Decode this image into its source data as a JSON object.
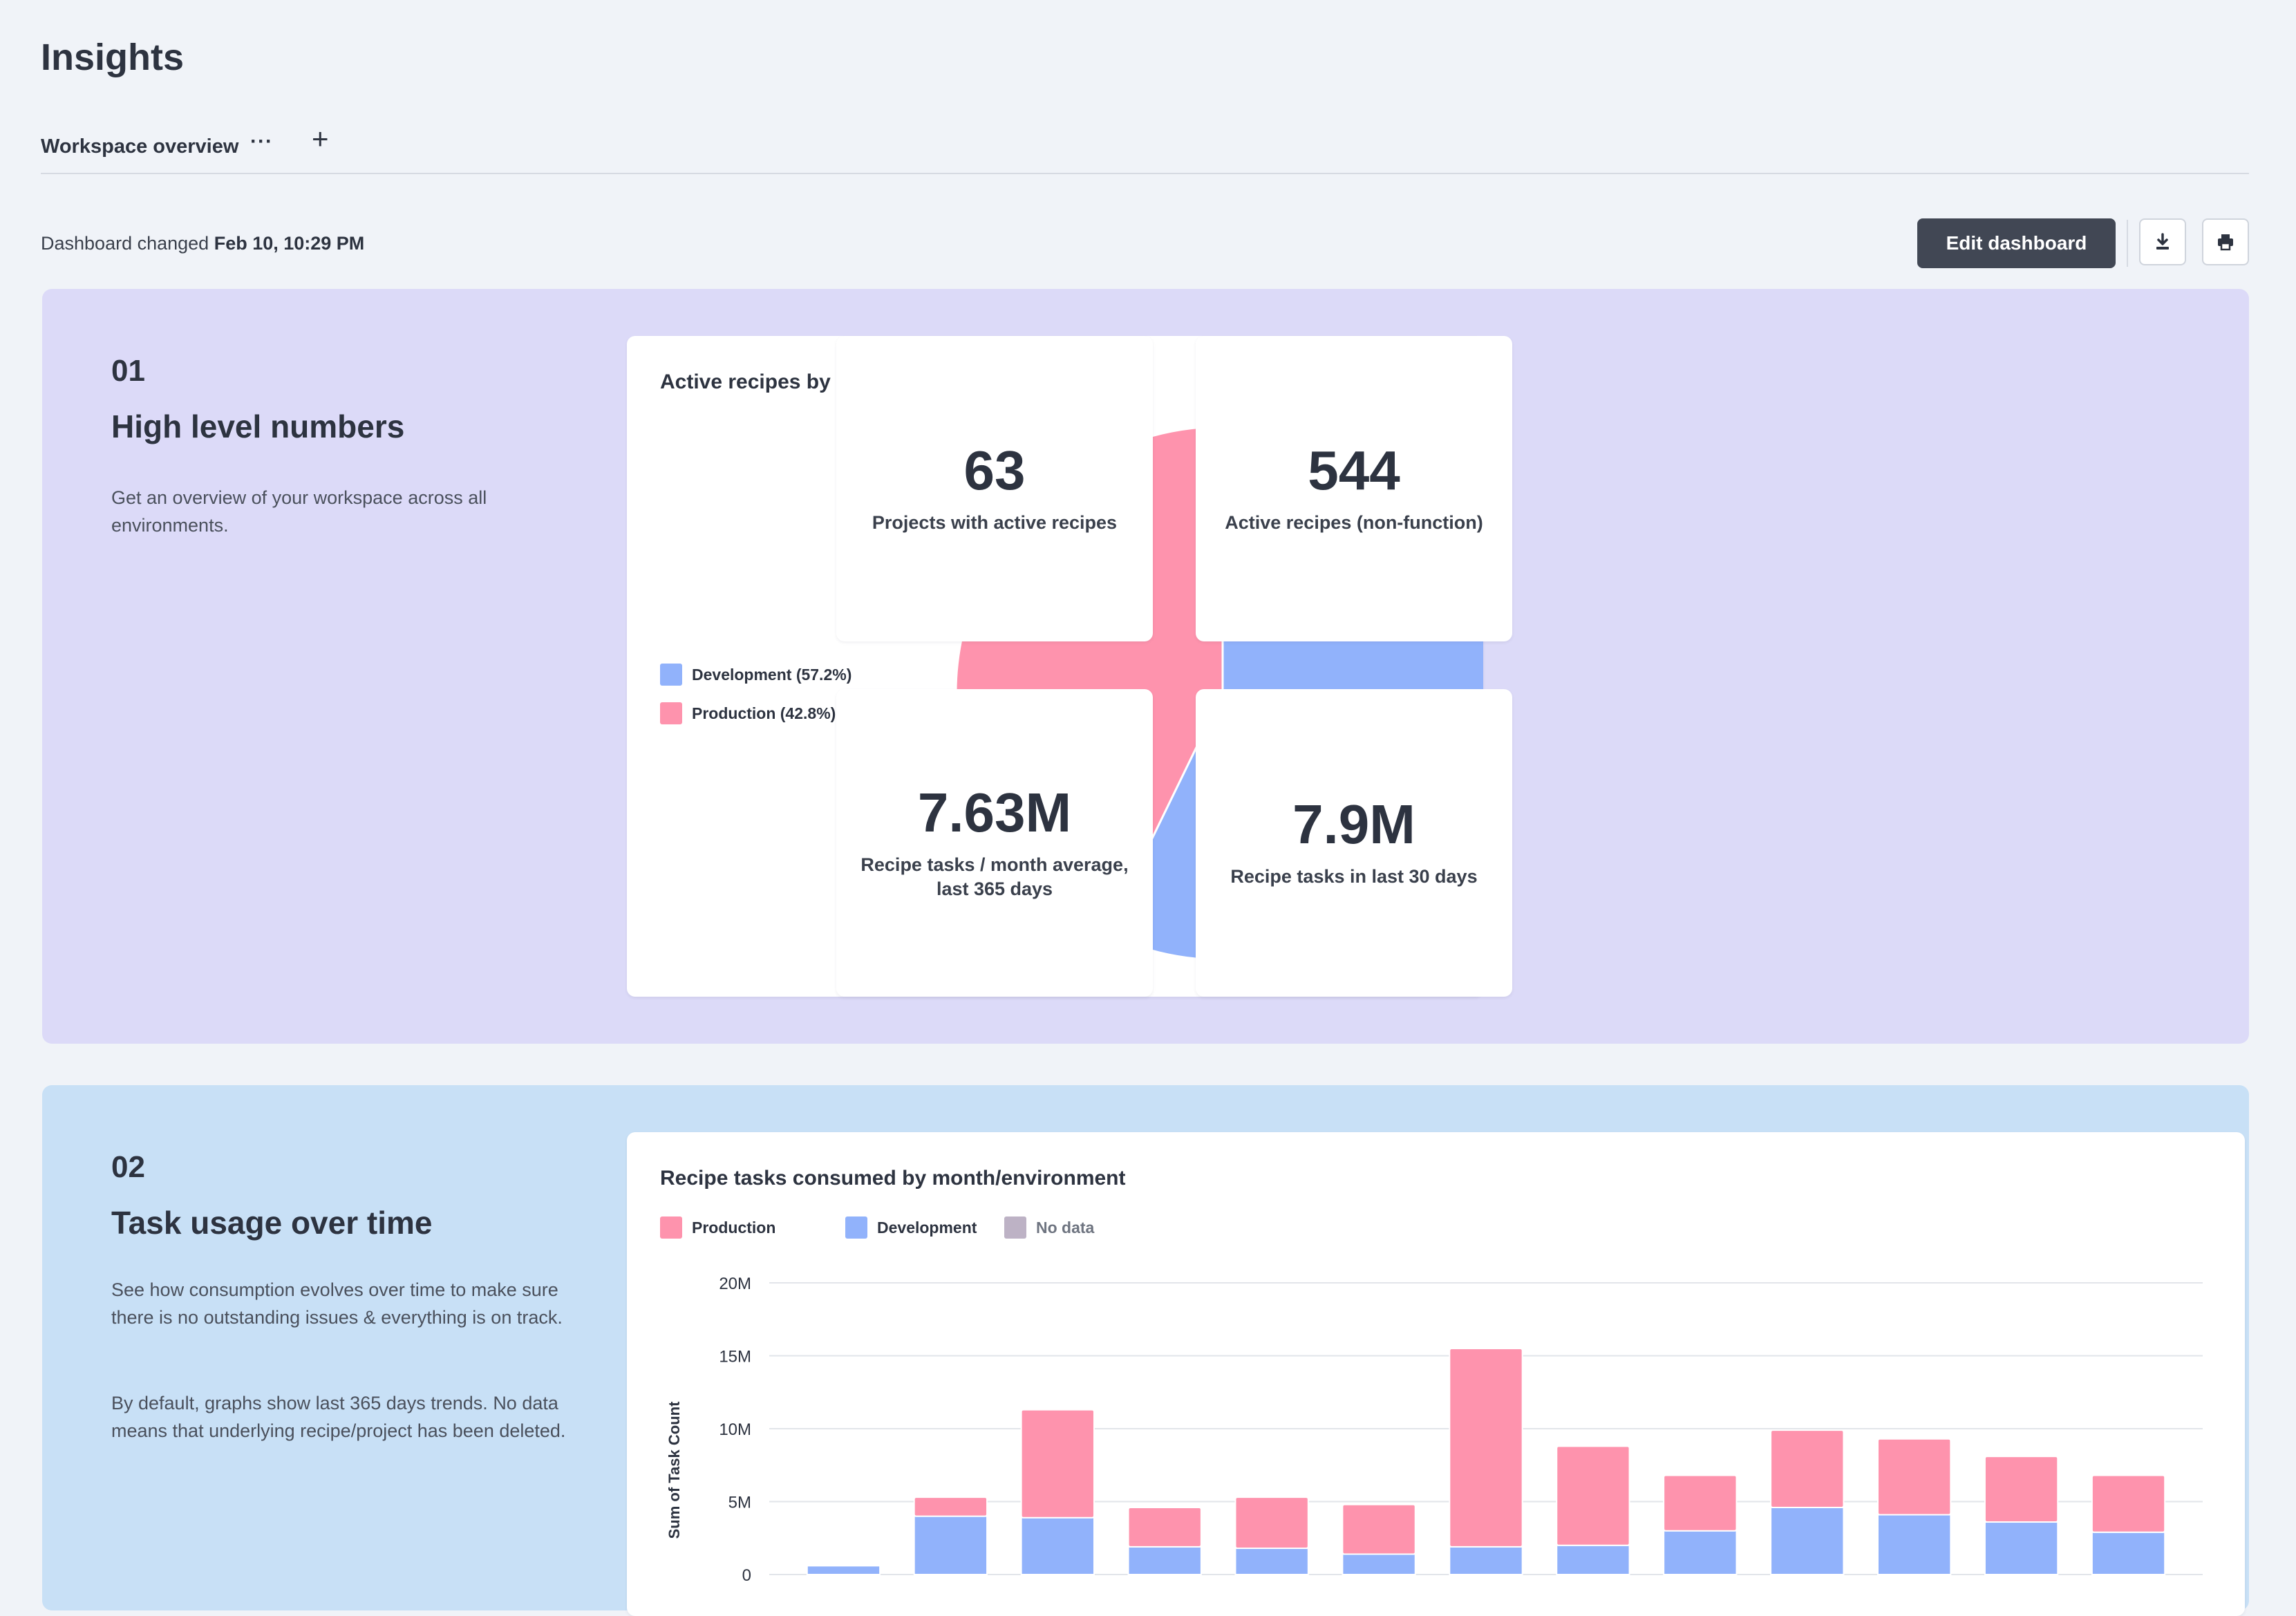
{
  "page": {
    "title": "Insights"
  },
  "tabs": {
    "active_label": "Workspace overview",
    "more_label": "···",
    "add_label": "+"
  },
  "toolbar": {
    "changed_prefix": "Dashboard changed",
    "changed_time": "Feb 10, 10:29 PM",
    "edit_label": "Edit dashboard",
    "download_icon": "download-icon",
    "print_icon": "print-icon"
  },
  "colors": {
    "development": "#91b2fb",
    "production": "#fe93ad",
    "no_data": "#bdb2c5"
  },
  "section1": {
    "number": "01",
    "title": "High level numbers",
    "description": "Get an overview of your workspace across all environments."
  },
  "pie_card": {
    "title": "Active recipes by environment"
  },
  "stats": [
    {
      "value": "63",
      "label": "Projects with active recipes"
    },
    {
      "value": "544",
      "label": "Active recipes (non-function)"
    },
    {
      "value": "7.63M",
      "label": "Recipe tasks / month average, last 365 days"
    },
    {
      "value": "7.9M",
      "label": "Recipe tasks in last 30 days"
    }
  ],
  "section2": {
    "number": "02",
    "title": "Task usage over time",
    "description_1": "See how consumption evolves over time to make sure there is no outstanding issues & everything is on track.",
    "description_2": "By default, graphs show last 365 days trends. No data means that underlying recipe/project has been deleted."
  },
  "bar_card": {
    "title": "Recipe tasks consumed by month/environment"
  },
  "chart_data": [
    {
      "type": "pie",
      "title": "Active recipes by environment",
      "slices": [
        {
          "label": "Development (57.2%)",
          "value": 57.2,
          "color": "#91b2fb"
        },
        {
          "label": "Production (42.8%)",
          "value": 42.8,
          "color": "#fe93ad"
        }
      ],
      "legend": "left"
    },
    {
      "type": "bar",
      "stacked": true,
      "title": "Recipe tasks consumed by month/environment",
      "ylabel": "Sum of Task Count",
      "yticks": [
        "0",
        "5M",
        "10M",
        "15M",
        "20M"
      ],
      "ylim": [
        0,
        20000000
      ],
      "legend": "top",
      "legend_items": [
        {
          "label": "Production",
          "color": "#fe93ad"
        },
        {
          "label": "Development",
          "color": "#91b2fb"
        },
        {
          "label": "No data",
          "color": "#bdb2c5"
        }
      ],
      "series": [
        {
          "name": "Development",
          "color": "#91b2fb",
          "values": [
            600000,
            4000000,
            3900000,
            1900000,
            1800000,
            1400000,
            1900000,
            2000000,
            3000000,
            4600000,
            4100000,
            3600000,
            2900000
          ]
        },
        {
          "name": "Production",
          "color": "#fe93ad",
          "values": [
            0,
            1300000,
            7400000,
            2700000,
            3500000,
            3400000,
            13600000,
            6800000,
            3800000,
            5300000,
            5200000,
            4500000,
            3900000
          ]
        }
      ],
      "grid": true
    }
  ]
}
